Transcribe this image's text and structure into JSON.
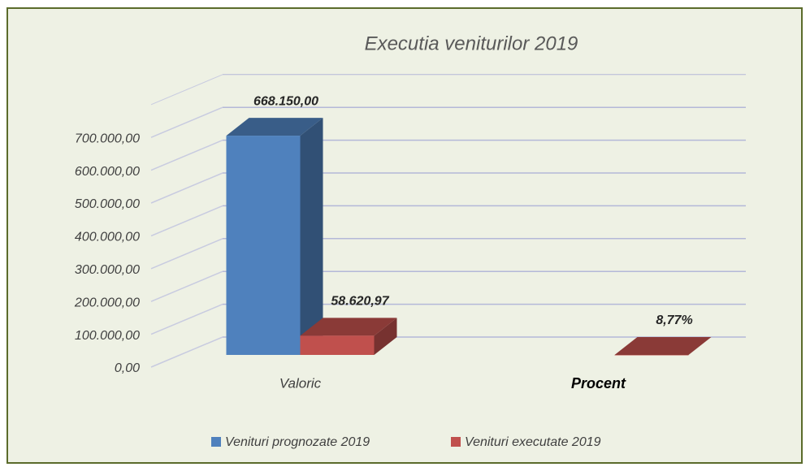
{
  "chart_data": {
    "type": "bar3d",
    "title": "Executia veniturilor 2019",
    "categories": [
      "Valoric",
      "Procent"
    ],
    "series": [
      {
        "name": "Venituri prognozate 2019",
        "color": "#4f81bd",
        "values": [
          668150,
          null
        ],
        "value_labels": [
          "668.150,00",
          null
        ]
      },
      {
        "name": "Venituri executate 2019",
        "color": "#c0504d",
        "values": [
          58620.97,
          8.77
        ],
        "value_labels": [
          "58.620,97",
          "8,77%"
        ]
      }
    ],
    "ylim": [
      0,
      800000
    ],
    "yticks": [
      {
        "value": 0,
        "label": "0,00"
      },
      {
        "value": 100000,
        "label": "100.000,00"
      },
      {
        "value": 200000,
        "label": "200.000,00"
      },
      {
        "value": 300000,
        "label": "300.000,00"
      },
      {
        "value": 400000,
        "label": "400.000,00"
      },
      {
        "value": 500000,
        "label": "500.000,00"
      },
      {
        "value": 600000,
        "label": "600.000,00"
      },
      {
        "value": 700000,
        "label": "700.000,00"
      }
    ],
    "grid": true,
    "legend": "bottom"
  }
}
